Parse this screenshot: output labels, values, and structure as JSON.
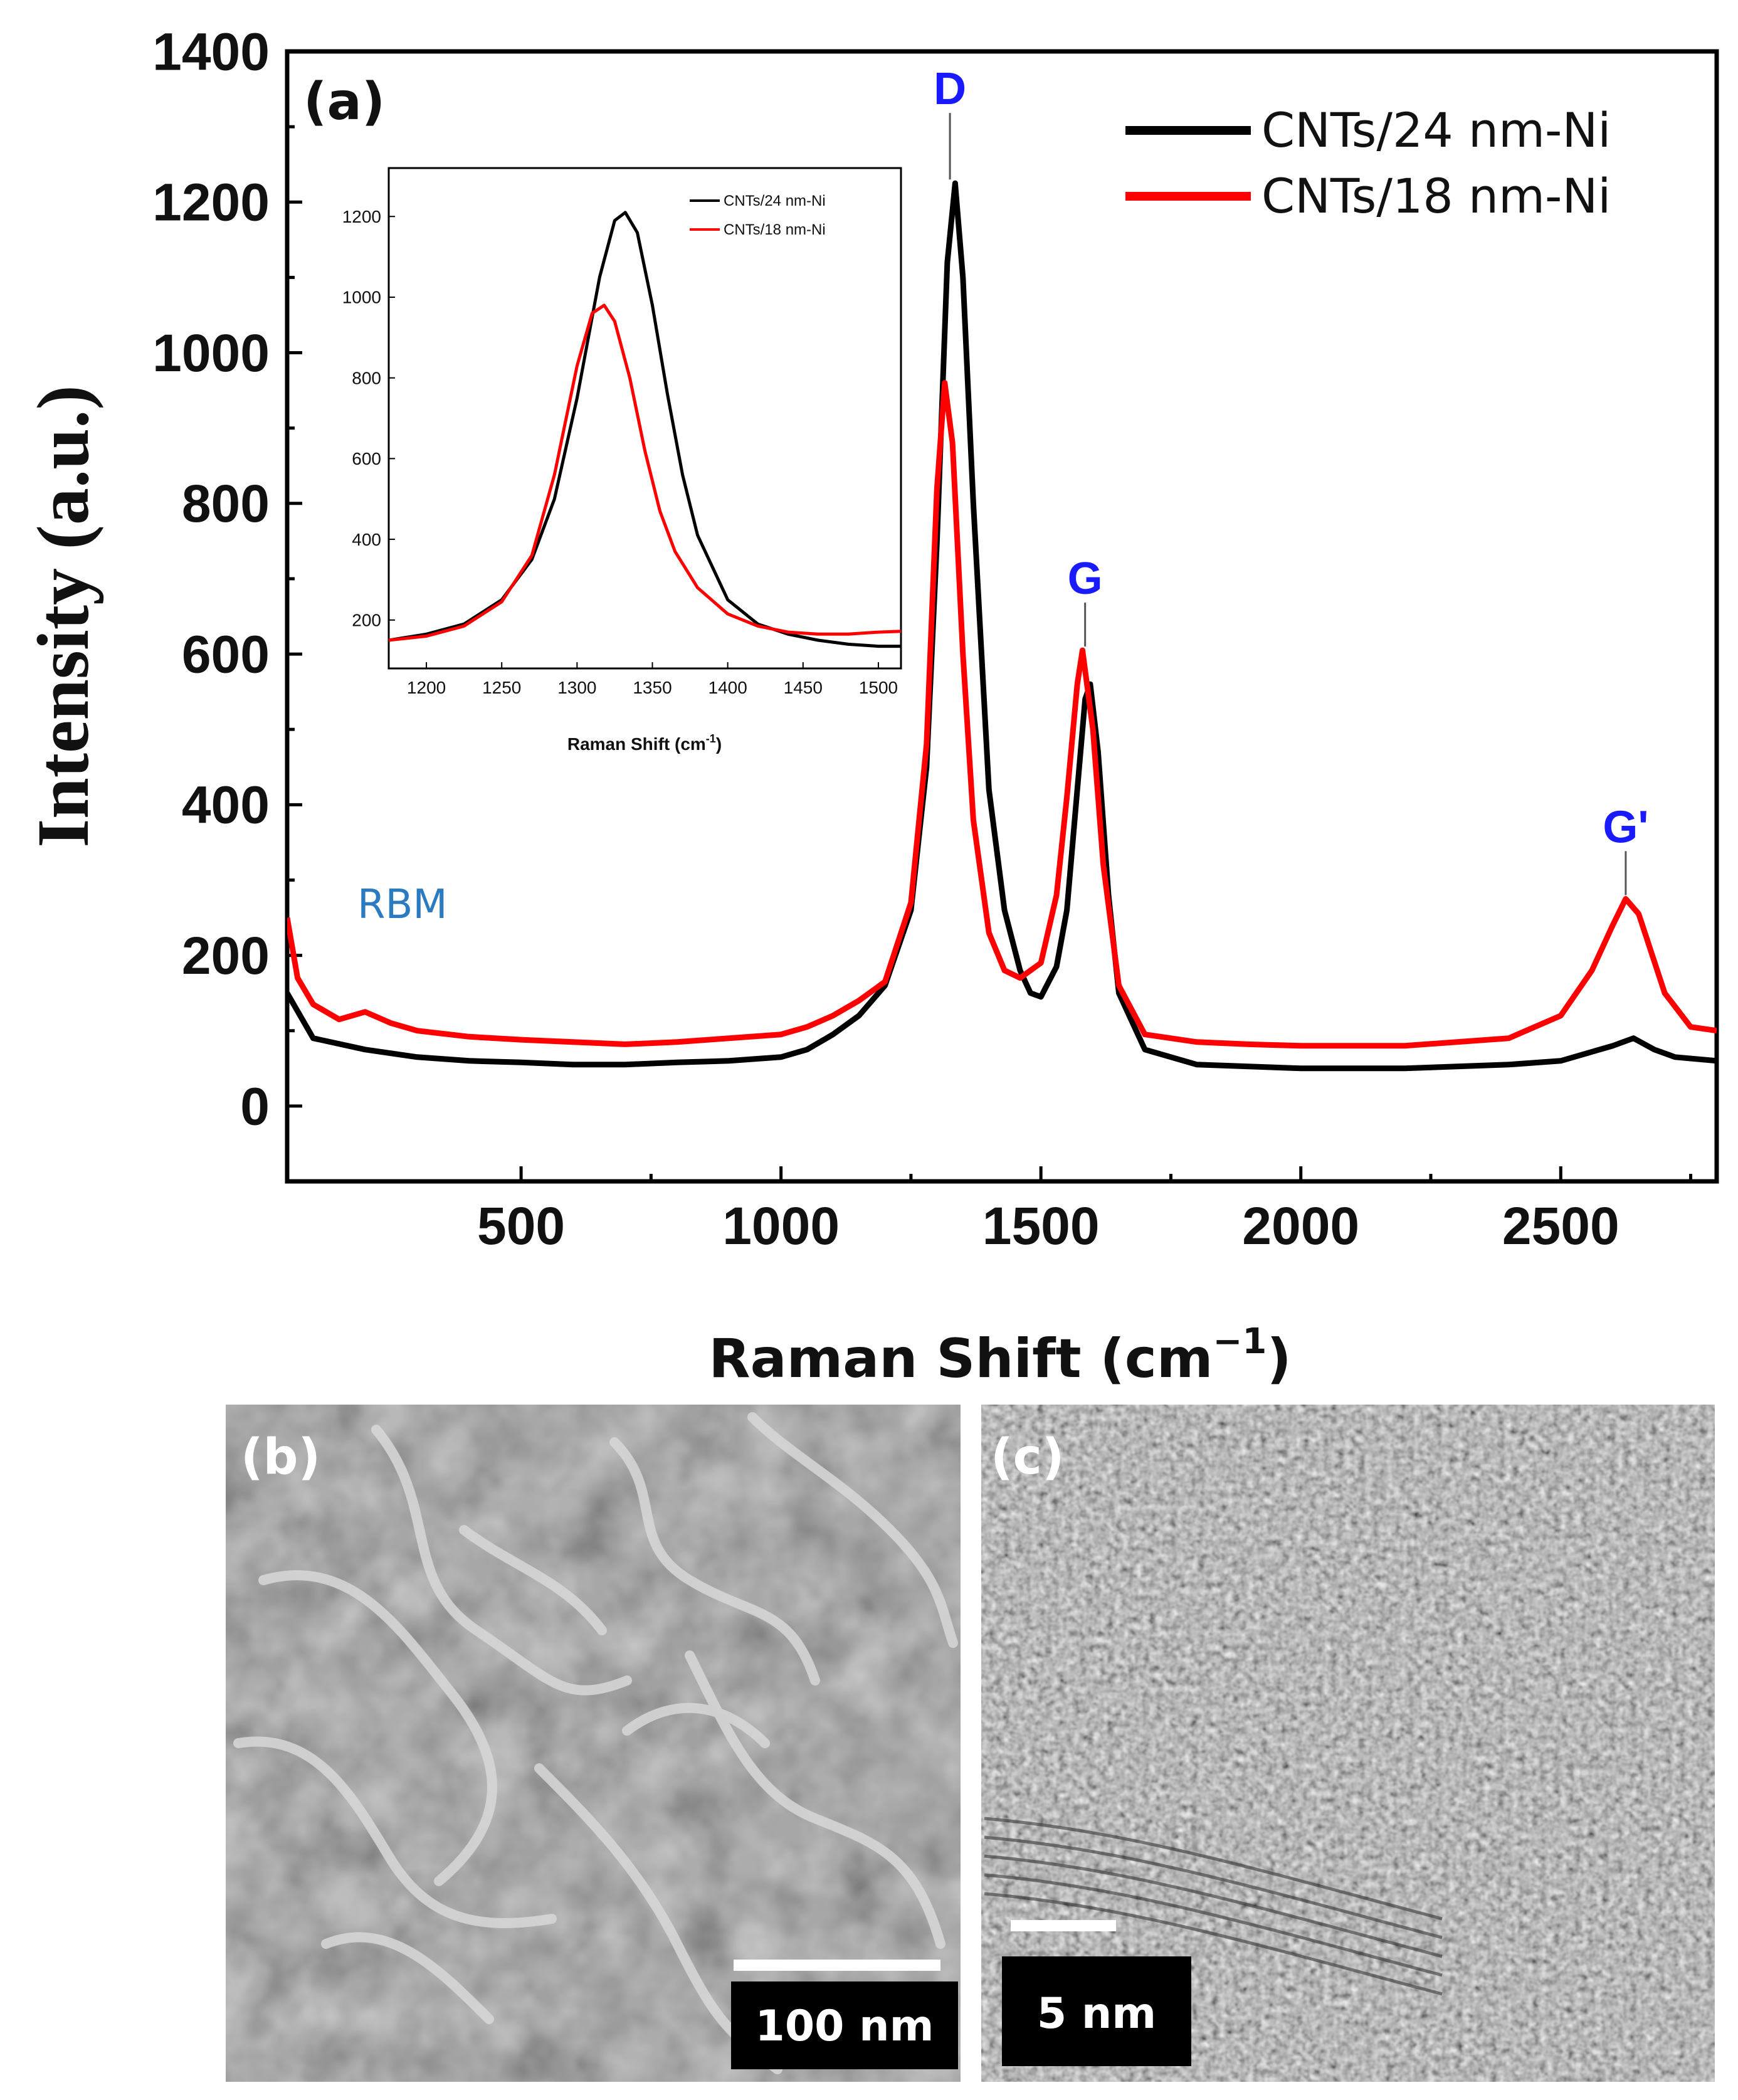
{
  "chart_data": [
    {
      "panel": "(a)",
      "type": "line",
      "xlabel": "Raman Shift (cm",
      "xlabel_sup": "−1",
      "xlabel_end": ")",
      "ylabel": "Intensity (a.u.)",
      "xlim": [
        50,
        2800
      ],
      "ylim": [
        -100,
        1400
      ],
      "xticks": [
        500,
        1000,
        1500,
        2000,
        2500
      ],
      "yticks": [
        0,
        200,
        400,
        600,
        800,
        1000,
        1200,
        1400
      ],
      "series": [
        {
          "name": "CNTs/24 nm-Ni",
          "color": "#000000",
          "x": [
            50,
            100,
            200,
            300,
            400,
            500,
            600,
            700,
            800,
            900,
            1000,
            1050,
            1100,
            1150,
            1200,
            1250,
            1280,
            1300,
            1320,
            1335,
            1350,
            1370,
            1400,
            1430,
            1460,
            1480,
            1500,
            1530,
            1550,
            1570,
            1585,
            1595,
            1610,
            1630,
            1650,
            1700,
            1800,
            2000,
            2200,
            2400,
            2500,
            2550,
            2600,
            2640,
            2680,
            2720,
            2800
          ],
          "y": [
            150,
            90,
            75,
            65,
            60,
            58,
            55,
            55,
            58,
            60,
            65,
            75,
            95,
            120,
            160,
            260,
            450,
            750,
            1120,
            1225,
            1100,
            800,
            420,
            260,
            180,
            150,
            145,
            185,
            260,
            420,
            540,
            560,
            470,
            280,
            150,
            75,
            55,
            50,
            50,
            55,
            60,
            70,
            80,
            90,
            75,
            65,
            60
          ]
        },
        {
          "name": "CNTs/18 nm-Ni",
          "color": "#ff0000",
          "x": [
            50,
            70,
            100,
            150,
            200,
            250,
            300,
            400,
            500,
            600,
            700,
            800,
            900,
            1000,
            1050,
            1100,
            1150,
            1200,
            1250,
            1280,
            1300,
            1315,
            1330,
            1350,
            1370,
            1400,
            1430,
            1460,
            1500,
            1530,
            1550,
            1570,
            1580,
            1600,
            1620,
            1650,
            1700,
            1800,
            1900,
            2000,
            2200,
            2400,
            2500,
            2560,
            2600,
            2625,
            2650,
            2700,
            2750,
            2800
          ],
          "y": [
            250,
            170,
            135,
            115,
            125,
            110,
            100,
            92,
            88,
            85,
            82,
            85,
            90,
            95,
            105,
            120,
            140,
            165,
            270,
            480,
            820,
            960,
            880,
            600,
            380,
            230,
            180,
            170,
            190,
            280,
            410,
            560,
            605,
            500,
            320,
            160,
            95,
            85,
            82,
            80,
            80,
            90,
            120,
            180,
            240,
            275,
            255,
            150,
            105,
            100
          ]
        }
      ],
      "legend": [
        "CNTs/24 nm-Ni",
        "CNTs/18 nm-Ni"
      ],
      "peak_labels": [
        {
          "text": "D",
          "x": 1325,
          "y_top": 1330,
          "y_line": 1230
        },
        {
          "text": "G",
          "x": 1585,
          "y_top": 680,
          "y_line": 610
        },
        {
          "text": "G'",
          "x": 2625,
          "y_top": 350,
          "y_line": 280
        }
      ],
      "annotation": {
        "text": "RBM",
        "x": 230,
        "y": 260
      }
    },
    {
      "panel": "inset",
      "type": "line",
      "xlabel": "Raman Shift (cm",
      "xlabel_sup": "-1",
      "xlabel_end": ")",
      "xlim": [
        1175,
        1515
      ],
      "ylim": [
        80,
        1320
      ],
      "xticks": [
        1200,
        1250,
        1300,
        1350,
        1400,
        1450,
        1500
      ],
      "yticks": [
        200,
        400,
        600,
        800,
        1000,
        1200
      ],
      "series": [
        {
          "name": "CNTs/24 nm-Ni",
          "color": "#000000",
          "x": [
            1175,
            1200,
            1225,
            1250,
            1270,
            1285,
            1300,
            1315,
            1325,
            1332,
            1340,
            1350,
            1360,
            1370,
            1380,
            1400,
            1420,
            1440,
            1460,
            1480,
            1500,
            1515
          ],
          "y": [
            150,
            165,
            190,
            250,
            350,
            500,
            750,
            1050,
            1190,
            1210,
            1160,
            980,
            760,
            560,
            410,
            250,
            190,
            165,
            150,
            140,
            135,
            135
          ]
        },
        {
          "name": "CNTs/18 nm-Ni",
          "color": "#ff0000",
          "x": [
            1175,
            1200,
            1225,
            1250,
            1270,
            1285,
            1300,
            1310,
            1318,
            1325,
            1335,
            1345,
            1355,
            1365,
            1380,
            1400,
            1420,
            1440,
            1460,
            1480,
            1500,
            1515
          ],
          "y": [
            150,
            160,
            185,
            245,
            360,
            560,
            830,
            960,
            980,
            940,
            800,
            620,
            470,
            370,
            280,
            215,
            185,
            170,
            165,
            165,
            170,
            172
          ]
        }
      ],
      "legend": [
        "CNTs/24 nm-Ni",
        "CNTs/18 nm-Ni"
      ]
    }
  ],
  "micrographs": {
    "b": {
      "label": "(b)",
      "scale": "100 nm"
    },
    "c": {
      "label": "(c)",
      "scale": "5 nm"
    }
  },
  "colors": {
    "peak_label": "#1a1aff",
    "rbm": "#2b7bc0",
    "series_24": "#000000",
    "series_18": "#ff0000"
  }
}
